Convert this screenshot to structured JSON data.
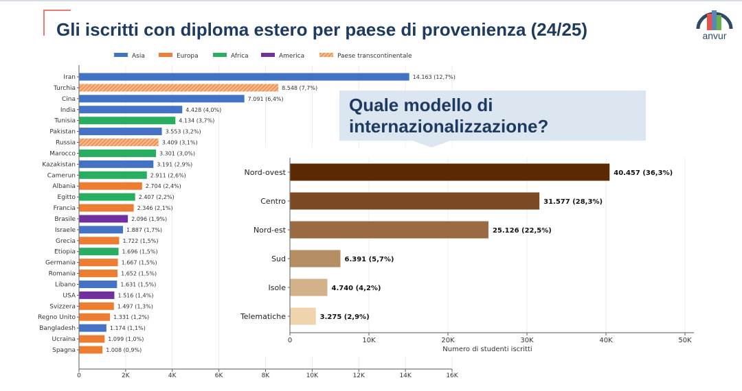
{
  "slide": {
    "title": "Gli iscritti con diploma estero per paese di provenienza (24/25)",
    "logo_text": "anvur",
    "callout_line1": "Quale modello di",
    "callout_line2": "internazionalizzazione?"
  },
  "chart_data": [
    {
      "type": "bar",
      "orientation": "horizontal",
      "title": "",
      "xlabel": "",
      "ylabel": "",
      "xlim": [
        0,
        16000
      ],
      "x_ticks": [
        "0",
        "2K",
        "4K",
        "6K",
        "8K",
        "10K",
        "12K",
        "14K",
        "16K"
      ],
      "x_tick_values": [
        0,
        2000,
        4000,
        6000,
        8000,
        10000,
        12000,
        14000,
        16000
      ],
      "grid": true,
      "legend": {
        "placement": "top",
        "entries": [
          {
            "name": "Asia",
            "color": "#4472c4",
            "hatch": false
          },
          {
            "name": "Europa",
            "color": "#ed7d31",
            "hatch": false
          },
          {
            "name": "Africa",
            "color": "#27ae60",
            "hatch": false
          },
          {
            "name": "America",
            "color": "#7030a0",
            "hatch": false
          },
          {
            "name": "Paese transcontinentale",
            "color": "#ed7d31",
            "hatch": true
          }
        ]
      },
      "categories": [
        "Iran",
        "Turchia",
        "Cina",
        "India",
        "Tunisia",
        "Pakistan",
        "Russia",
        "Marocco",
        "Kazakistan",
        "Camerun",
        "Albania",
        "Egitto",
        "Francia",
        "Brasile",
        "Israele",
        "Grecia",
        "Etiopia",
        "Germania",
        "Romania",
        "Libano",
        "USA",
        "Svizzera",
        "Regno Unito",
        "Bangladesh",
        "Ucraina",
        "Spagna"
      ],
      "values": [
        14163,
        8548,
        7091,
        4428,
        4134,
        3553,
        3409,
        3301,
        3191,
        2911,
        2704,
        2407,
        2346,
        2096,
        1887,
        1722,
        1696,
        1667,
        1652,
        1631,
        1516,
        1497,
        1331,
        1174,
        1099,
        1008
      ],
      "groups": [
        "Asia",
        "Paese transcontinentale",
        "Asia",
        "Asia",
        "Africa",
        "Asia",
        "Paese transcontinentale",
        "Africa",
        "Asia",
        "Africa",
        "Europa",
        "Africa",
        "Europa",
        "America",
        "Asia",
        "Europa",
        "Africa",
        "Europa",
        "Europa",
        "Asia",
        "America",
        "Europa",
        "Europa",
        "Asia",
        "Europa",
        "Europa"
      ],
      "labels": [
        "14.163 (12,7%)",
        "8.548 (7,7%)",
        "7.091 (6,4%)",
        "4.428 (4,0%)",
        "4.134 (3,7%)",
        "3.553 (3,2%)",
        "3.409 (3,1%)",
        "3.301 (3,0%)",
        "3.191 (2,9%)",
        "2.911 (2,6%)",
        "2.704 (2,4%)",
        "2.407 (2,2%)",
        "2.346 (2,1%)",
        "2.096 (1,9%)",
        "1.887 (1,7%)",
        "1.722 (1,5%)",
        "1.696 (1,5%)",
        "1.667 (1,5%)",
        "1.652 (1,5%)",
        "1.631 (1,5%)",
        "1.516 (1,4%)",
        "1.497 (1,3%)",
        "1.331 (1,2%)",
        "1.174 (1,1%)",
        "1.099 (1,0%)",
        "1.008 (0,9%)"
      ]
    },
    {
      "type": "bar",
      "orientation": "horizontal",
      "title": "",
      "xlabel": "Numero di studenti iscritti",
      "ylabel": "",
      "xlim": [
        0,
        50000
      ],
      "x_ticks": [
        "0",
        "10K",
        "20K",
        "30K",
        "40K",
        "50K"
      ],
      "x_tick_values": [
        0,
        10000,
        20000,
        30000,
        40000,
        50000
      ],
      "grid": true,
      "categories": [
        "Nord-ovest",
        "Centro",
        "Nord-est",
        "Sud",
        "Isole",
        "Telematiche"
      ],
      "values": [
        40457,
        31577,
        25126,
        6391,
        4740,
        3275
      ],
      "colors": [
        "#5c2a02",
        "#7b4a22",
        "#9a6b42",
        "#b68e64",
        "#d4b289",
        "#f0d4ad"
      ],
      "labels": [
        "40.457 (36,3%)",
        "31.577 (28,3%)",
        "25.126 (22,5%)",
        "6.391 (5,7%)",
        "4.740 (4,2%)",
        "3.275 (2,9%)"
      ]
    }
  ]
}
